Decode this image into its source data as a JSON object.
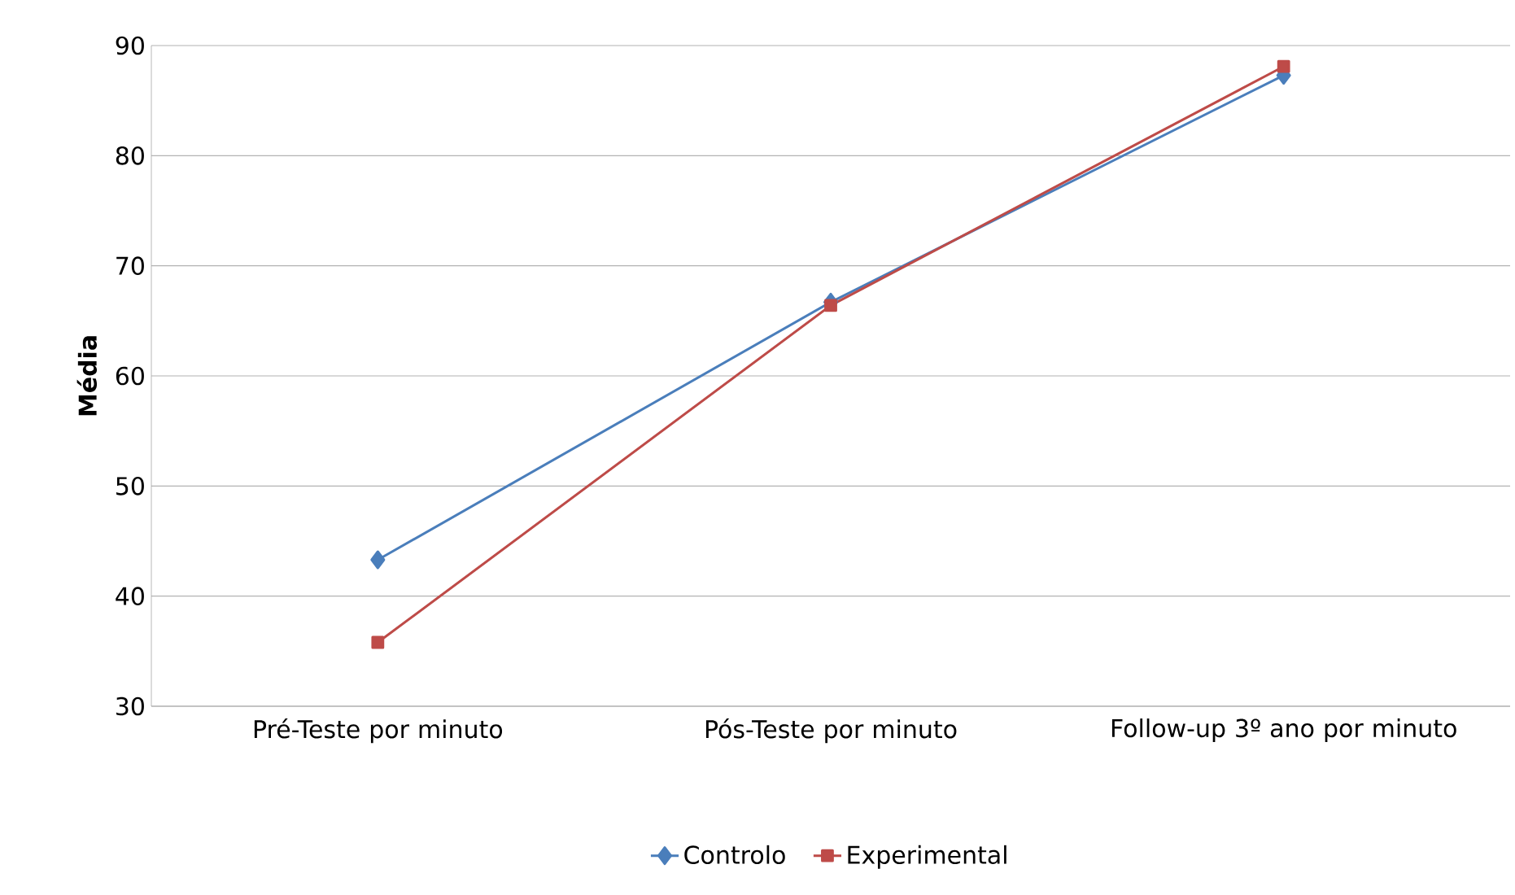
{
  "chart_data": {
    "type": "line",
    "ylabel": "Média",
    "categories": [
      "Pré-Teste por minuto",
      "Pós-Teste por minuto",
      "Follow-up 3º ano por minuto"
    ],
    "series": [
      {
        "name": "Controlo",
        "color": "#4a7ebb",
        "marker": "diamond",
        "values": [
          43.3,
          66.7,
          87.3
        ]
      },
      {
        "name": "Experimental",
        "color": "#be4b48",
        "marker": "square",
        "values": [
          35.8,
          66.4,
          88.1
        ]
      }
    ],
    "ylim": [
      30,
      90
    ],
    "yticks": [
      30,
      40,
      50,
      60,
      70,
      80,
      90
    ],
    "grid": "y",
    "legend": "bottom",
    "line_style": "solid"
  }
}
